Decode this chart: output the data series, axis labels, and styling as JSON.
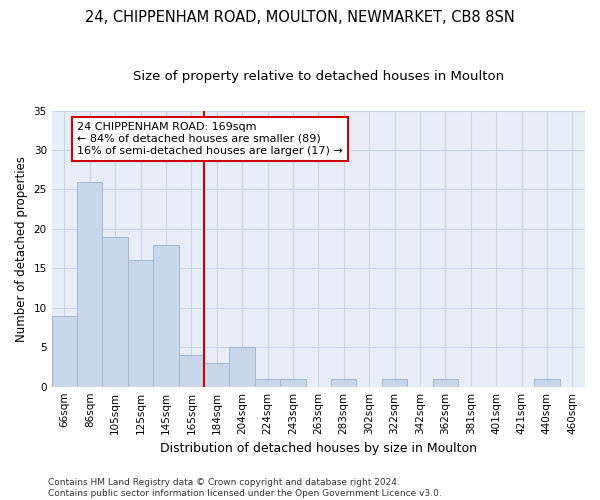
{
  "title1": "24, CHIPPENHAM ROAD, MOULTON, NEWMARKET, CB8 8SN",
  "title2": "Size of property relative to detached houses in Moulton",
  "xlabel": "Distribution of detached houses by size in Moulton",
  "ylabel": "Number of detached properties",
  "categories": [
    "66sqm",
    "86sqm",
    "105sqm",
    "125sqm",
    "145sqm",
    "165sqm",
    "184sqm",
    "204sqm",
    "224sqm",
    "243sqm",
    "263sqm",
    "283sqm",
    "302sqm",
    "322sqm",
    "342sqm",
    "362sqm",
    "381sqm",
    "401sqm",
    "421sqm",
    "440sqm",
    "460sqm"
  ],
  "values": [
    9,
    26,
    19,
    16,
    18,
    4,
    3,
    5,
    1,
    1,
    0,
    1,
    0,
    1,
    0,
    1,
    0,
    0,
    0,
    1,
    0
  ],
  "bar_color": "#c8d8ea",
  "bar_edge_color": "#a0b8d0",
  "vline_x": 5.5,
  "vline_color": "#cc0000",
  "annotation_text": "24 CHIPPENHAM ROAD: 169sqm\n← 84% of detached houses are smaller (89)\n16% of semi-detached houses are larger (17) →",
  "annotation_box_color": "#ffffff",
  "annotation_box_edge": "#cc0000",
  "ylim": [
    0,
    35
  ],
  "yticks": [
    0,
    5,
    10,
    15,
    20,
    25,
    30,
    35
  ],
  "grid_color": "#c8d4e8",
  "background_color": "#e8eef8",
  "figure_bg": "#ffffff",
  "footnote": "Contains HM Land Registry data © Crown copyright and database right 2024.\nContains public sector information licensed under the Open Government Licence v3.0.",
  "title1_fontsize": 10.5,
  "title2_fontsize": 9.5,
  "xlabel_fontsize": 9,
  "ylabel_fontsize": 8.5,
  "tick_fontsize": 7.5,
  "footnote_fontsize": 6.5
}
